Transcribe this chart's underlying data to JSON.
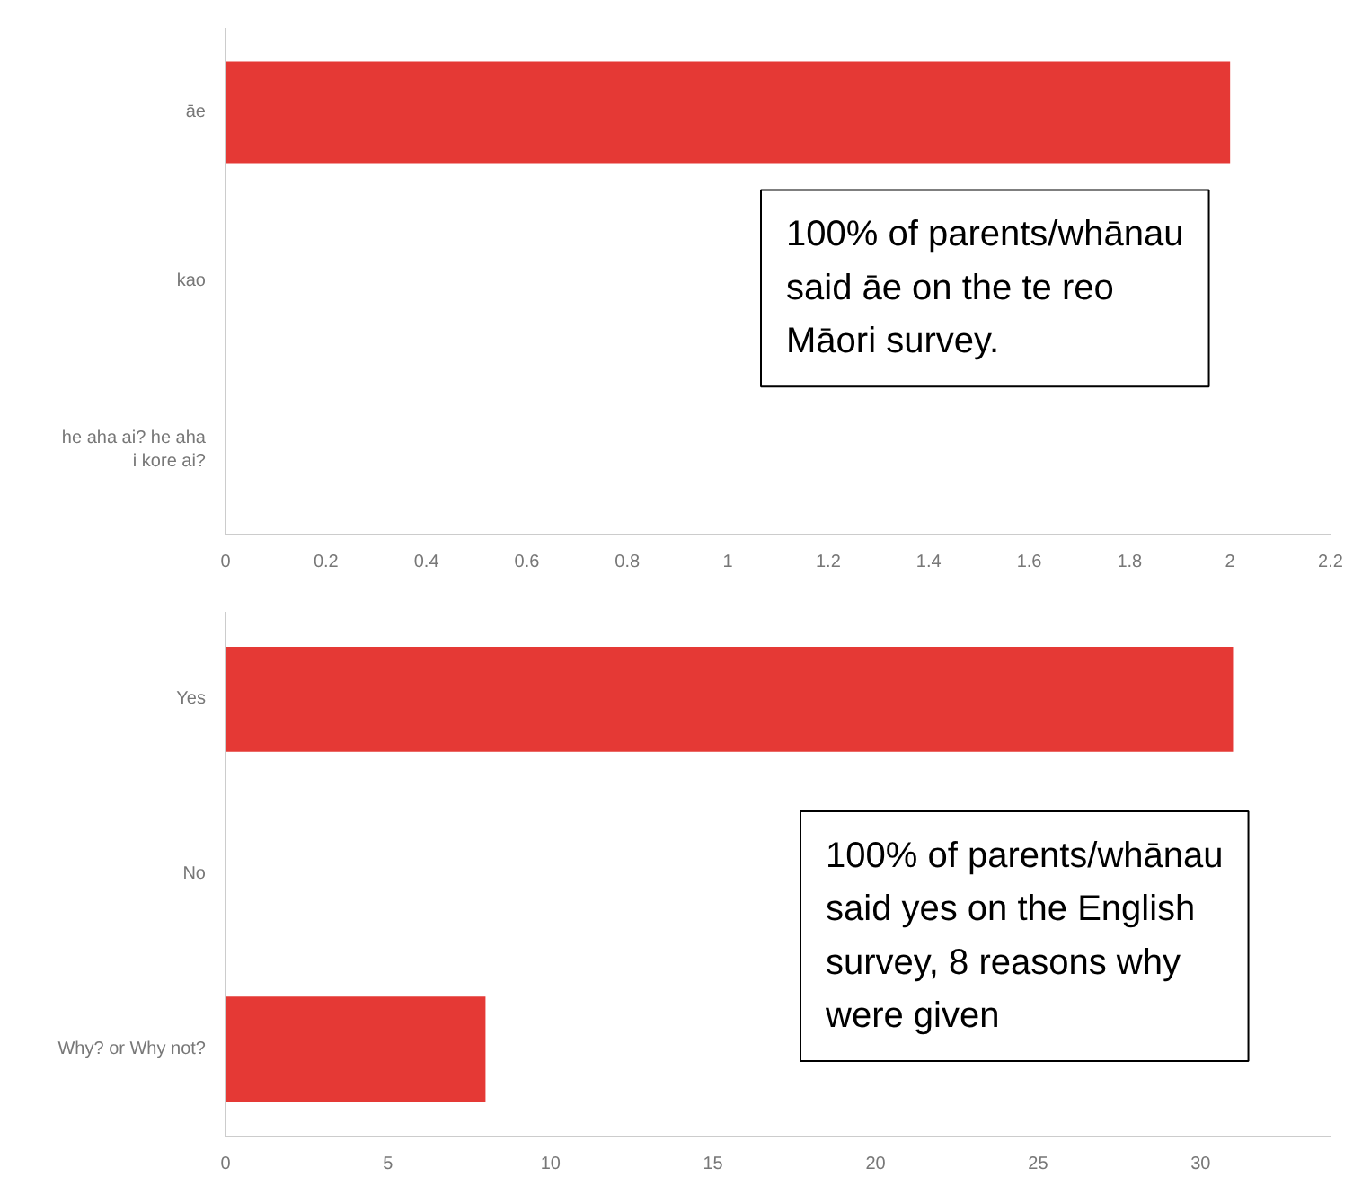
{
  "chart_data": [
    {
      "type": "bar",
      "orientation": "horizontal",
      "categories": [
        "āe",
        "kao",
        "he aha ai? he aha i kore ai?"
      ],
      "values": [
        2,
        0,
        0
      ],
      "color": "#e53935",
      "xlim": [
        0,
        2.2
      ],
      "xticks": [
        0,
        0.2,
        0.4,
        0.6,
        0.8,
        1,
        1.2,
        1.4,
        1.6,
        1.8,
        2,
        2.2
      ],
      "grid": false,
      "annotations": [
        "100% of parents/whānau said āe on the te reo Māori survey."
      ]
    },
    {
      "type": "bar",
      "orientation": "horizontal",
      "categories": [
        "Yes",
        "No",
        "Why? or Why not?"
      ],
      "values": [
        31,
        0,
        8
      ],
      "color": "#e53935",
      "xlim": [
        0,
        34
      ],
      "xticks": [
        0,
        5,
        10,
        15,
        20,
        25,
        30
      ],
      "grid": false,
      "annotations": [
        "100% of parents/whānau said yes on the English survey, 8 reasons why were given"
      ]
    }
  ]
}
